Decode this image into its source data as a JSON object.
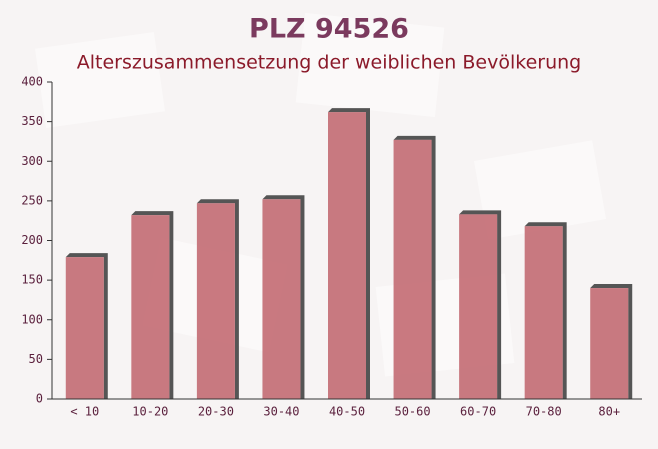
{
  "chart_data": {
    "type": "bar",
    "title": "PLZ 94526",
    "subtitle": "Alterszusammensetzung der weiblichen Bevölkerung",
    "categories": [
      "< 10",
      "10-20",
      "20-30",
      "30-40",
      "40-50",
      "50-60",
      "60-70",
      "70-80",
      "80+"
    ],
    "values": [
      179,
      232,
      247,
      252,
      362,
      327,
      233,
      218,
      140
    ],
    "color": "#c0636b",
    "ylim": [
      0,
      400
    ],
    "yticks": [
      0,
      50,
      100,
      150,
      200,
      250,
      300,
      350,
      400
    ],
    "grid": false
  }
}
